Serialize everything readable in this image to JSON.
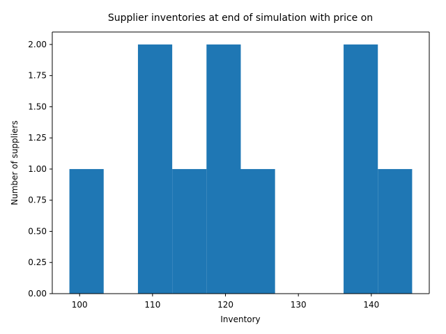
{
  "chart_data": {
    "type": "bar",
    "subtype": "histogram",
    "title": "Supplier inventories at end of simulation with price on",
    "xlabel": "Inventory",
    "ylabel": "Number of suppliers",
    "bar_color": "#1f77b4",
    "bins": [
      {
        "x0": 98.6,
        "x1": 103.3,
        "count": 1
      },
      {
        "x0": 103.3,
        "x1": 108.0,
        "count": 0
      },
      {
        "x0": 108.0,
        "x1": 112.7,
        "count": 2
      },
      {
        "x0": 112.7,
        "x1": 117.4,
        "count": 1
      },
      {
        "x0": 117.4,
        "x1": 122.1,
        "count": 2
      },
      {
        "x0": 122.1,
        "x1": 126.8,
        "count": 1
      },
      {
        "x0": 126.8,
        "x1": 131.5,
        "count": 0
      },
      {
        "x0": 131.5,
        "x1": 136.2,
        "count": 0
      },
      {
        "x0": 136.2,
        "x1": 140.9,
        "count": 2
      },
      {
        "x0": 140.9,
        "x1": 145.6,
        "count": 1
      }
    ],
    "xlim": [
      96.25,
      147.95
    ],
    "ylim": [
      0,
      2.1
    ],
    "xticks": [
      100,
      110,
      120,
      130,
      140
    ],
    "yticks": [
      0.0,
      0.25,
      0.5,
      0.75,
      1.0,
      1.25,
      1.5,
      1.75,
      2.0
    ],
    "ytick_labels": [
      "0.00",
      "0.25",
      "0.50",
      "0.75",
      "1.00",
      "1.25",
      "1.50",
      "1.75",
      "2.00"
    ],
    "grid": false
  }
}
